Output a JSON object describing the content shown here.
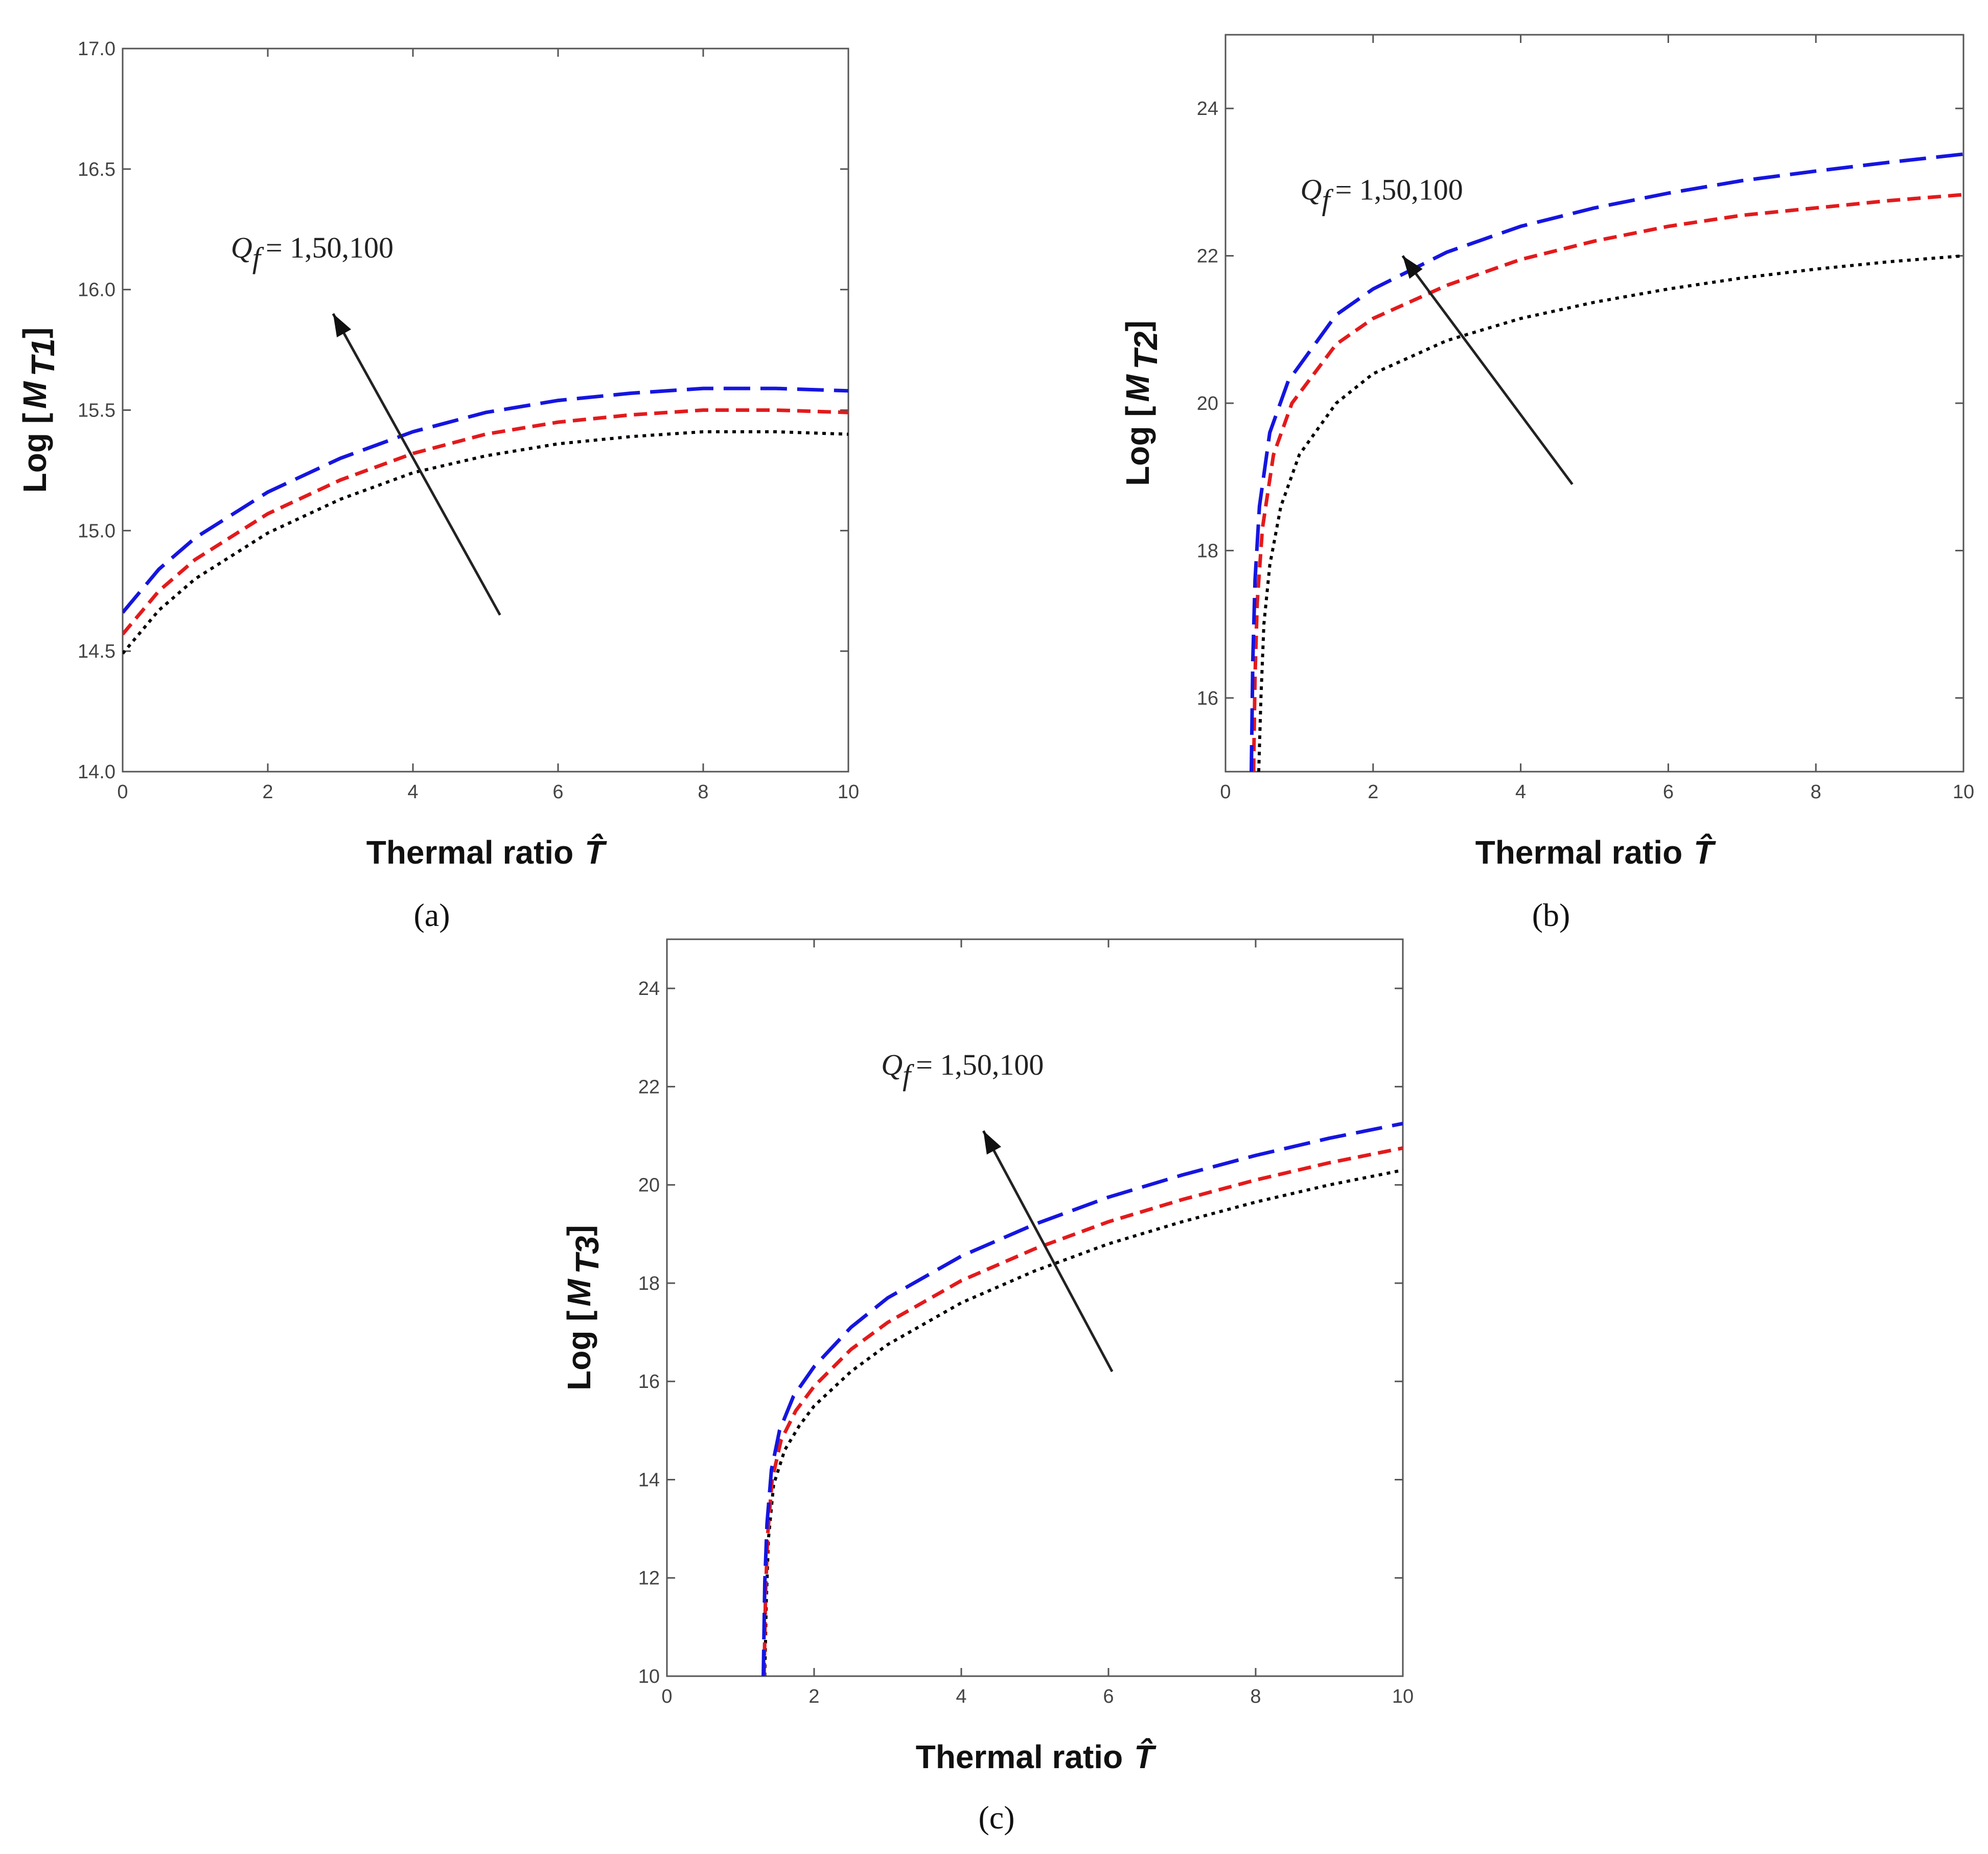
{
  "chart_data": [
    {
      "type": "line",
      "panel": "a",
      "caption": "(a)",
      "xlabel": "Thermal ratio T̂",
      "xlabel_text": "Thermal ratio",
      "xlabel_symbol": "T̂",
      "ylabel": "Log [M T1]",
      "ylabel_prefix": "Log [",
      "ylabel_var": "M",
      "ylabel_sub": "T1",
      "ylabel_suffix": "]",
      "xlim": [
        0,
        10
      ],
      "ylim": [
        14.0,
        17.0
      ],
      "xticks": [
        0,
        2,
        4,
        6,
        8,
        10
      ],
      "xtick_labels": [
        "0",
        "2",
        "4",
        "6",
        "8",
        "10"
      ],
      "yticks": [
        14.0,
        14.5,
        15.0,
        15.5,
        16.0,
        16.5,
        17.0
      ],
      "ytick_labels": [
        "14.0",
        "14.5",
        "15.0",
        "15.5",
        "16.0",
        "16.5",
        "17.0"
      ],
      "annotation": "Q f = 1,50,100",
      "annotation_var": "Q",
      "annotation_sub": "f",
      "annotation_values": "= 1,50,100",
      "arrow": {
        "from": [
          5.2,
          14.65
        ],
        "to": [
          2.9,
          15.9
        ]
      },
      "x": [
        0,
        0.5,
        1,
        2,
        3,
        4,
        5,
        6,
        7,
        8,
        9,
        10
      ],
      "series": [
        {
          "name": "Q_f = 1",
          "color": "#000000",
          "style": "dotted",
          "values": [
            14.49,
            14.67,
            14.8,
            14.99,
            15.13,
            15.24,
            15.31,
            15.36,
            15.39,
            15.41,
            15.41,
            15.4
          ]
        },
        {
          "name": "Q_f = 50",
          "color": "#e31a1c",
          "style": "dashed",
          "values": [
            14.57,
            14.75,
            14.88,
            15.07,
            15.21,
            15.32,
            15.4,
            15.45,
            15.48,
            15.5,
            15.5,
            15.49
          ]
        },
        {
          "name": "Q_f = 100",
          "color": "#1515e0",
          "style": "longdash",
          "values": [
            14.66,
            14.84,
            14.97,
            15.16,
            15.3,
            15.41,
            15.49,
            15.54,
            15.57,
            15.59,
            15.59,
            15.58
          ]
        }
      ]
    },
    {
      "type": "line",
      "panel": "b",
      "caption": "(b)",
      "xlabel": "Thermal ratio T̂",
      "xlabel_text": "Thermal ratio",
      "xlabel_symbol": "T̂",
      "ylabel": "Log [M T2]",
      "ylabel_prefix": "Log [",
      "ylabel_var": "M",
      "ylabel_sub": "T2",
      "ylabel_suffix": "]",
      "xlim": [
        0,
        10
      ],
      "ylim": [
        15,
        25
      ],
      "xticks": [
        0,
        2,
        4,
        6,
        8,
        10
      ],
      "xtick_labels": [
        "0",
        "2",
        "4",
        "6",
        "8",
        "10"
      ],
      "yticks": [
        16,
        18,
        20,
        22,
        24
      ],
      "ytick_labels": [
        "16",
        "18",
        "20",
        "22",
        "24"
      ],
      "annotation": "Q f = 1,50,100",
      "annotation_var": "Q",
      "annotation_sub": "f",
      "annotation_values": "= 1,50,100",
      "arrow": {
        "from": [
          4.7,
          18.9
        ],
        "to": [
          2.4,
          22.0
        ]
      },
      "series": [
        {
          "name": "Q_f = 1",
          "color": "#000000",
          "style": "dotted",
          "x": [
            0.45,
            0.48,
            0.52,
            0.6,
            0.75,
            1.0,
            1.5,
            2,
            3,
            4,
            5,
            6,
            7,
            8,
            9,
            10
          ],
          "values": [
            15.0,
            16.0,
            17.0,
            17.8,
            18.6,
            19.3,
            20.0,
            20.4,
            20.85,
            21.15,
            21.37,
            21.55,
            21.7,
            21.82,
            21.92,
            22.0
          ]
        },
        {
          "name": "Q_f = 50",
          "color": "#e31a1c",
          "style": "dashed",
          "x": [
            0.38,
            0.4,
            0.43,
            0.5,
            0.65,
            0.9,
            1.5,
            2,
            3,
            4,
            5,
            6,
            7,
            8,
            9,
            10
          ],
          "values": [
            15.0,
            16.3,
            17.3,
            18.3,
            19.3,
            20.0,
            20.8,
            21.15,
            21.6,
            21.95,
            22.2,
            22.4,
            22.55,
            22.65,
            22.75,
            22.83
          ]
        },
        {
          "name": "Q_f = 100",
          "color": "#1515e0",
          "style": "longdash",
          "x": [
            0.35,
            0.37,
            0.4,
            0.46,
            0.6,
            0.85,
            1.5,
            2,
            3,
            4,
            5,
            6,
            7,
            8,
            9,
            10
          ],
          "values": [
            15.0,
            16.5,
            17.6,
            18.6,
            19.6,
            20.3,
            21.2,
            21.55,
            22.05,
            22.4,
            22.65,
            22.85,
            23.02,
            23.15,
            23.27,
            23.38
          ]
        }
      ]
    },
    {
      "type": "line",
      "panel": "c",
      "caption": "(c)",
      "xlabel": "Thermal ratio T̂",
      "xlabel_text": "Thermal ratio",
      "xlabel_symbol": "T̂",
      "ylabel": "Log [M T3]",
      "ylabel_prefix": "Log [",
      "ylabel_var": "M",
      "ylabel_sub": "T3",
      "ylabel_suffix": "]",
      "xlim": [
        0,
        10
      ],
      "ylim": [
        10,
        25
      ],
      "xticks": [
        0,
        2,
        4,
        6,
        8,
        10
      ],
      "xtick_labels": [
        "0",
        "2",
        "4",
        "6",
        "8",
        "10"
      ],
      "yticks": [
        10,
        12,
        14,
        16,
        18,
        20,
        22,
        24
      ],
      "ytick_labels": [
        "10",
        "12",
        "14",
        "16",
        "18",
        "20",
        "22",
        "24"
      ],
      "annotation": "Q f = 1,50,100",
      "annotation_var": "Q",
      "annotation_sub": "f",
      "annotation_values": "= 1,50,100",
      "arrow": {
        "from": [
          6.05,
          16.2
        ],
        "to": [
          4.3,
          21.1
        ]
      },
      "series": [
        {
          "name": "Q_f = 1",
          "color": "#000000",
          "style": "dotted",
          "x": [
            1.33,
            1.35,
            1.38,
            1.45,
            1.6,
            1.8,
            2,
            2.5,
            3,
            4,
            5,
            6,
            7,
            8,
            9,
            10
          ],
          "values": [
            10.0,
            11.5,
            12.8,
            13.9,
            14.6,
            15.1,
            15.5,
            16.2,
            16.75,
            17.6,
            18.25,
            18.8,
            19.25,
            19.65,
            20.0,
            20.3
          ]
        },
        {
          "name": "Q_f = 50",
          "color": "#e31a1c",
          "style": "dashed",
          "x": [
            1.32,
            1.34,
            1.37,
            1.43,
            1.55,
            1.75,
            2,
            2.5,
            3,
            4,
            5,
            6,
            7,
            8,
            9,
            10
          ],
          "values": [
            10.0,
            11.7,
            12.9,
            14.0,
            14.8,
            15.4,
            15.9,
            16.65,
            17.2,
            18.05,
            18.7,
            19.25,
            19.7,
            20.1,
            20.45,
            20.75
          ]
        },
        {
          "name": "Q_f = 100",
          "color": "#1515e0",
          "style": "longdash",
          "x": [
            1.31,
            1.33,
            1.36,
            1.42,
            1.53,
            1.72,
            2,
            2.5,
            3,
            4,
            5,
            6,
            7,
            8,
            9,
            10
          ],
          "values": [
            10.0,
            11.9,
            13.1,
            14.2,
            15.0,
            15.7,
            16.3,
            17.1,
            17.7,
            18.55,
            19.2,
            19.75,
            20.2,
            20.6,
            20.95,
            21.25
          ]
        }
      ]
    }
  ]
}
